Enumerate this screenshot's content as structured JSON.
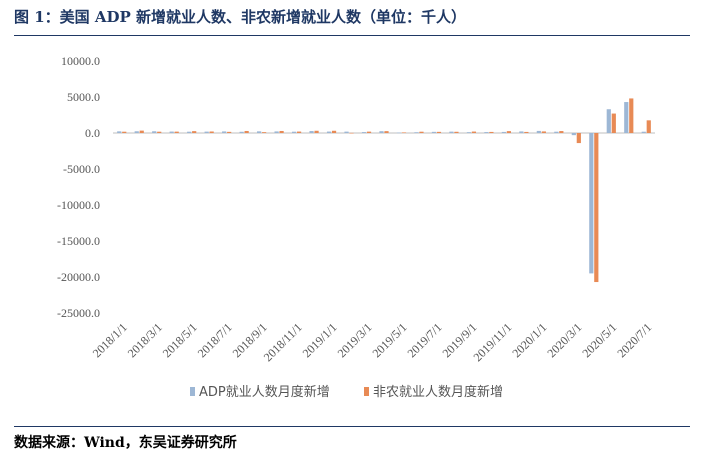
{
  "header": {
    "title": "图 1：美国 ADP 新增就业人数、非农新增就业人数（单位：千人）"
  },
  "footer": {
    "source": "数据来源：Wind，东吴证券研究所"
  },
  "chart_data": {
    "type": "bar",
    "categories": [
      "2018/1/1",
      "2018/2/1",
      "2018/3/1",
      "2018/4/1",
      "2018/5/1",
      "2018/6/1",
      "2018/7/1",
      "2018/8/1",
      "2018/9/1",
      "2018/10/1",
      "2018/11/1",
      "2018/12/1",
      "2019/1/1",
      "2019/2/1",
      "2019/3/1",
      "2019/4/1",
      "2019/5/1",
      "2019/6/1",
      "2019/7/1",
      "2019/8/1",
      "2019/9/1",
      "2019/10/1",
      "2019/11/1",
      "2019/12/1",
      "2020/1/1",
      "2020/2/1",
      "2020/3/1",
      "2020/4/1",
      "2020/5/1",
      "2020/6/1",
      "2020/7/1"
    ],
    "x_tick_labels": [
      "2018/1/1",
      "2018/3/1",
      "2018/5/1",
      "2018/7/1",
      "2018/9/1",
      "2018/11/1",
      "2019/1/1",
      "2019/3/1",
      "2019/5/1",
      "2019/7/1",
      "2019/9/1",
      "2019/11/1",
      "2020/1/1",
      "2020/3/1",
      "2020/5/1",
      "2020/7/1"
    ],
    "y_tick_labels": [
      "10000.0",
      "5000.0",
      "0.0",
      "-5000.0",
      "-10000.0",
      "-15000.0",
      "-20000.0",
      "-25000.0"
    ],
    "ylim": [
      -25000,
      10000
    ],
    "y_step": 5000,
    "legend_position": "bottom",
    "series": [
      {
        "name": "ADP就业人数月度新增",
        "color": "#9db7d5",
        "values": [
          230,
          240,
          240,
          200,
          180,
          190,
          220,
          170,
          230,
          220,
          180,
          270,
          200,
          190,
          130,
          250,
          60,
          110,
          160,
          190,
          120,
          130,
          150,
          220,
          290,
          180,
          -300,
          -19500,
          3300,
          4300,
          180
        ]
      },
      {
        "name": "非农就业人数月度新增",
        "color": "#e88a55",
        "values": [
          180,
          330,
          180,
          190,
          260,
          210,
          160,
          280,
          120,
          280,
          200,
          310,
          310,
          20,
          190,
          260,
          80,
          180,
          160,
          170,
          200,
          150,
          260,
          150,
          220,
          270,
          -1400,
          -20700,
          2700,
          4800,
          1760
        ]
      }
    ]
  }
}
